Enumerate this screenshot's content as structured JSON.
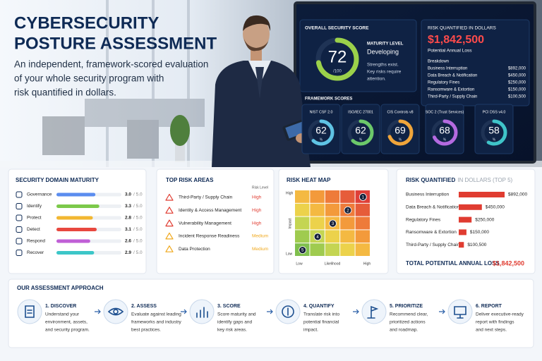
{
  "hero": {
    "title_lines": [
      "CYBERSECURITY",
      "POSTURE ASSESSMENT"
    ],
    "subtitle_lines": [
      "An independent, framework-scored evaluation",
      "of your whole security program with",
      "risk quantified in dollars."
    ]
  },
  "screen": {
    "overall_label": "OVERALL SECURITY SCORE",
    "overall_score": 72,
    "overall_max": {
      "value": 100,
      "label": "/100"
    },
    "maturity_label": "MATURITY LEVEL",
    "maturity_level": "Developing",
    "maturity_note_lines": [
      "Strengths exist.",
      "Key risks require",
      "attention."
    ],
    "risk_title": "RISK QUANTIFIED IN DOLLARS",
    "potential_label": "Potential Annual Loss",
    "breakdown_label": "Breakdown",
    "frameworks_label": "FRAMEWORK SCORES",
    "percent": "%",
    "frameworks": [
      {
        "name": "NIST CSF 2.0",
        "score": 62,
        "color": "#5fc3e4"
      },
      {
        "name": "ISO/IEC 27001",
        "score": 62,
        "color": "#6cc96a"
      },
      {
        "name": "CIS Controls v8",
        "score": 69,
        "color": "#f0a53a"
      },
      {
        "name": "SOC 2 (Trust Services)",
        "score": 68,
        "color": "#b46ae0"
      },
      {
        "name": "PCI DSS v4.0",
        "score": 58,
        "color": "#3fc4c9"
      }
    ]
  },
  "domain_maturity": {
    "title": "SECURITY DOMAIN MATURITY",
    "scale": {
      "value": 5,
      "label": "/ 5.0"
    },
    "domains": [
      {
        "name": "Governance",
        "score": {
          "value": 3,
          "label": "3.0"
        },
        "color": "#5b8def"
      },
      {
        "name": "Identify",
        "score": 3.3,
        "color": "#7cc94a"
      },
      {
        "name": "Protect",
        "score": 2.8,
        "color": "#f2b731"
      },
      {
        "name": "Detect",
        "score": 3.1,
        "color": "#e8483f"
      },
      {
        "name": "Respond",
        "score": 2.6,
        "color": "#c05fd6"
      },
      {
        "name": "Recover",
        "score": 2.9,
        "color": "#3cc6c8"
      }
    ]
  },
  "top_risks": {
    "title": "TOP RISK AREAS",
    "level_header": "Risk Level",
    "risks": [
      {
        "name": "Third-Party / Supply Chain",
        "level": "High",
        "color": "#e03c31"
      },
      {
        "name": "Identity & Access Management",
        "level": "High",
        "color": "#e03c31"
      },
      {
        "name": "Vulnerability Management",
        "level": "High",
        "color": "#e03c31"
      },
      {
        "name": "Incident Response Readiness",
        "level": "Medium",
        "color": "#f0a81c"
      },
      {
        "name": "Data Protection",
        "level": "Medium",
        "color": "#f0a81c"
      }
    ]
  },
  "heat_map": {
    "title": "RISK HEAT MAP",
    "y_label": "Impact",
    "y_high": "High",
    "y_low": "Low",
    "x_label": "Likelihood",
    "x_low": "Low",
    "x_high": "High",
    "markers": [
      {
        "label": "1",
        "likelihood": 5,
        "impact": 5
      },
      {
        "label": "2",
        "likelihood": 4,
        "impact": 4
      },
      {
        "label": "3",
        "likelihood": 3,
        "impact": 3
      },
      {
        "label": "4",
        "likelihood": 2,
        "impact": 2
      },
      {
        "label": "5",
        "likelihood": 1,
        "impact": 1
      }
    ]
  },
  "risk_quantified": {
    "title": "RISK QUANTIFIED",
    "title_suffix": "IN DOLLARS (TOP 5)",
    "items": [
      {
        "name": "Business Interruption",
        "amount": {
          "value": 892000,
          "label": "$892,000"
        }
      },
      {
        "name": "Data Breach & Notification",
        "amount": {
          "value": 450000,
          "label": "$450,000"
        }
      },
      {
        "name": "Regulatory Fines",
        "amount": {
          "value": 250000,
          "label": "$250,000"
        }
      },
      {
        "name": "Ransomware & Extortion",
        "amount": {
          "value": 150000,
          "label": "$150,000"
        }
      },
      {
        "name": "Third-Party / Supply Chain",
        "amount": {
          "value": 100500,
          "label": "$100,500"
        }
      }
    ],
    "total_label": "TOTAL POTENTIAL ANNUAL LOSS",
    "total": {
      "value": 1842500,
      "label": "$1,842,500"
    }
  },
  "approach": {
    "title": "OUR ASSESSMENT APPROACH",
    "steps": [
      {
        "title": "1. DISCOVER",
        "text_lines": [
          "Understand your",
          "environment, assets,",
          "and security program."
        ]
      },
      {
        "title": "2. ASSESS",
        "text_lines": [
          "Evaluate against leading",
          "frameworks and industry",
          "best practices."
        ]
      },
      {
        "title": "3. SCORE",
        "text_lines": [
          "Score maturity and",
          "identify gaps and",
          "key risk areas."
        ]
      },
      {
        "title": "4. QUANTIFY",
        "text_lines": [
          "Translate risk into",
          "potential financial",
          "impact."
        ]
      },
      {
        "title": "5. PRIORITIZE",
        "text_lines": [
          "Recommend clear,",
          "prioritized actions",
          "and roadmap."
        ]
      },
      {
        "title": "6. REPORT",
        "text_lines": [
          "Deliver executive-ready",
          "report with findings",
          "and next steps."
        ]
      }
    ]
  }
}
